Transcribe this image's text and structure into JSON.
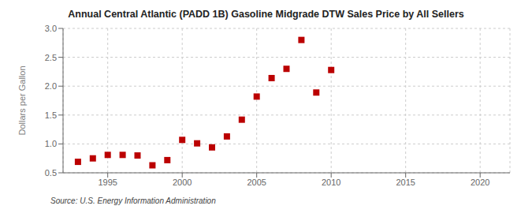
{
  "chart_data": {
    "type": "scatter",
    "title": "Annual Central Atlantic (PADD 1B) Gasoline Midgrade DTW Sales Price by All Sellers",
    "ylabel": "Dollars per Gallon",
    "annotations": [
      "Source: U.S. Energy Information Administration"
    ],
    "x": [
      1993,
      1994,
      1995,
      1996,
      1997,
      1998,
      1999,
      2000,
      2001,
      2002,
      2003,
      2004,
      2005,
      2006,
      2007,
      2008,
      2009,
      2010
    ],
    "values": [
      0.69,
      0.75,
      0.81,
      0.81,
      0.8,
      0.63,
      0.72,
      1.07,
      1.01,
      0.94,
      1.13,
      1.42,
      1.82,
      2.14,
      2.3,
      2.8,
      1.89,
      2.28
    ],
    "color": "#bb0000",
    "marker": "square",
    "xlim": [
      1992,
      2022
    ],
    "ylim": [
      0.5,
      3.0
    ],
    "xticks": [
      1995,
      2000,
      2005,
      2010,
      2015,
      2020
    ],
    "yticks": [
      0.5,
      {
        "value": 1,
        "label": "1.0"
      },
      1.5,
      {
        "value": 2,
        "label": "2.0"
      },
      2.5,
      {
        "value": 3,
        "label": "3.0"
      }
    ],
    "grid": true
  }
}
